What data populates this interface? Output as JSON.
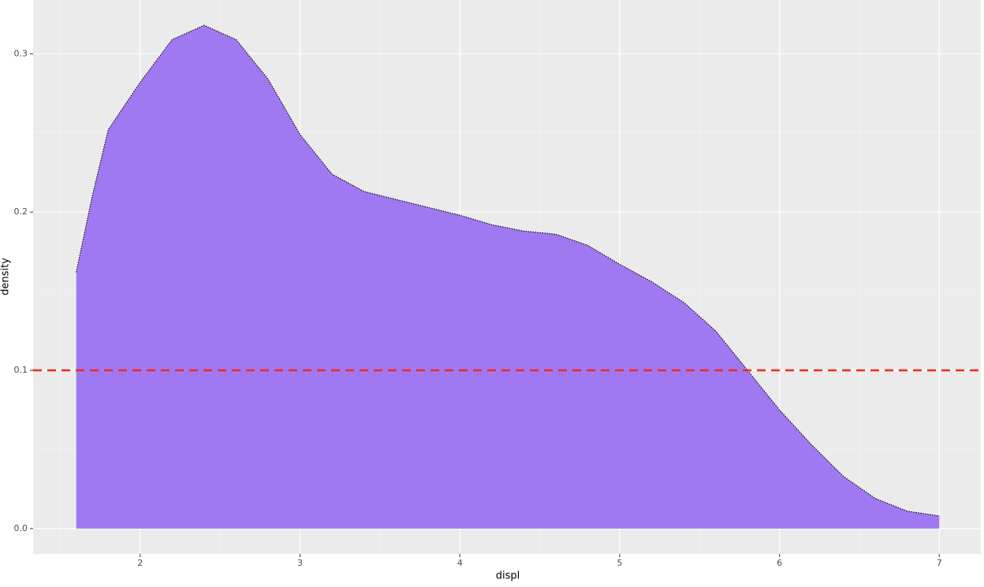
{
  "chart_data": {
    "type": "density",
    "xlabel": "displ",
    "ylabel": "density",
    "x": [
      1.6,
      1.7,
      1.8,
      2.0,
      2.2,
      2.4,
      2.6,
      2.8,
      3.0,
      3.2,
      3.4,
      3.6,
      3.8,
      4.0,
      4.2,
      4.4,
      4.6,
      4.8,
      5.0,
      5.2,
      5.4,
      5.6,
      5.8,
      6.0,
      6.2,
      6.4,
      6.6,
      6.8,
      7.0
    ],
    "values": [
      0.162,
      0.21,
      0.252,
      0.282,
      0.309,
      0.318,
      0.309,
      0.284,
      0.249,
      0.224,
      0.213,
      0.208,
      0.203,
      0.198,
      0.192,
      0.188,
      0.186,
      0.179,
      0.167,
      0.156,
      0.143,
      0.125,
      0.1,
      0.075,
      0.053,
      0.033,
      0.019,
      0.011,
      0.008
    ],
    "color": "#a078f2",
    "outline_color": "#000000",
    "hline": {
      "value": 0.1,
      "color": "#ee2a1e"
    },
    "xlim": [
      1.33,
      7.26
    ],
    "ylim": [
      -0.016,
      0.334
    ],
    "xticks": [
      2,
      3,
      4,
      5,
      6,
      7
    ],
    "yticks": [
      {
        "value": 0,
        "label": "0.0"
      },
      0.1,
      0.2,
      0.3
    ],
    "grid": true,
    "minor_grid": true
  }
}
